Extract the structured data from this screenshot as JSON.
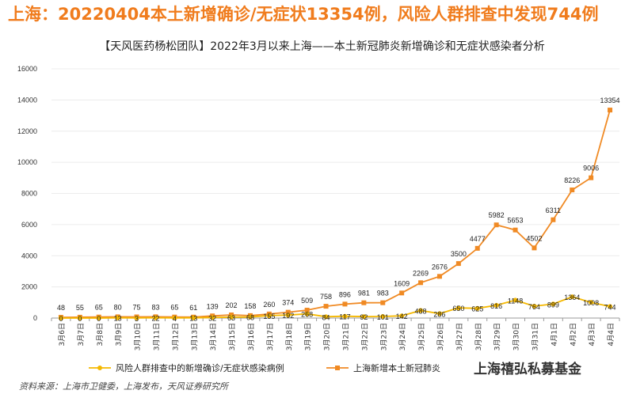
{
  "headline": "上海：20220404本土新增确诊/无症状13354例，风险人群排查中发现744例",
  "source": "资料来源：上海市卫健委，上海发布，天风证券研究所",
  "watermark": "上海禧弘私募基金",
  "colors": {
    "headline": "#f07c1d",
    "line_main": "#f08a24",
    "line_risk": "#f5b800",
    "axis": "#999999"
  },
  "chart_data": {
    "type": "line",
    "title": "【天风医药杨松团队】2022年3月以来上海——本土新冠肺炎新增确诊和无症状感染者分析",
    "categories": [
      "3月6日",
      "3月7日",
      "3月8日",
      "3月9日",
      "3月10日",
      "3月11日",
      "3月12日",
      "3月13日",
      "3月14日",
      "3月15日",
      "3月16日",
      "3月17日",
      "3月18日",
      "3月19日",
      "3月20日",
      "3月21日",
      "3月22日",
      "3月23日",
      "3月24日",
      "3月25日",
      "3月26日",
      "3月27日",
      "3月28日",
      "3月29日",
      "3月30日",
      "3月31日",
      "4月1日",
      "4月2日",
      "4月3日",
      "4月4日"
    ],
    "series": [
      {
        "name": "上海新增本土新冠肺炎",
        "values": [
          48,
          55,
          65,
          80,
          75,
          83,
          65,
          61,
          139,
          202,
          158,
          260,
          374,
          509,
          758,
          896,
          981,
          983,
          1609,
          2269,
          2676,
          3500,
          4477,
          5982,
          5653,
          4502,
          6311,
          8226,
          9006,
          13354
        ]
      },
      {
        "name": "风险人群排查中的新增确诊/无症状感染病例",
        "values": [
          0,
          0,
          0,
          13,
          3,
          22,
          4,
          13,
          32,
          63,
          68,
          155,
          192,
          268,
          84,
          117,
          92,
          101,
          142,
          488,
          286,
          650,
          625,
          816,
          1148,
          764,
          899,
          1364,
          1008,
          744
        ]
      }
    ],
    "ylim": [
      0,
      16000
    ],
    "yticks": [
      0,
      2000,
      4000,
      6000,
      8000,
      10000,
      12000,
      14000,
      16000
    ],
    "legend_position": "bottom",
    "grid": true
  }
}
